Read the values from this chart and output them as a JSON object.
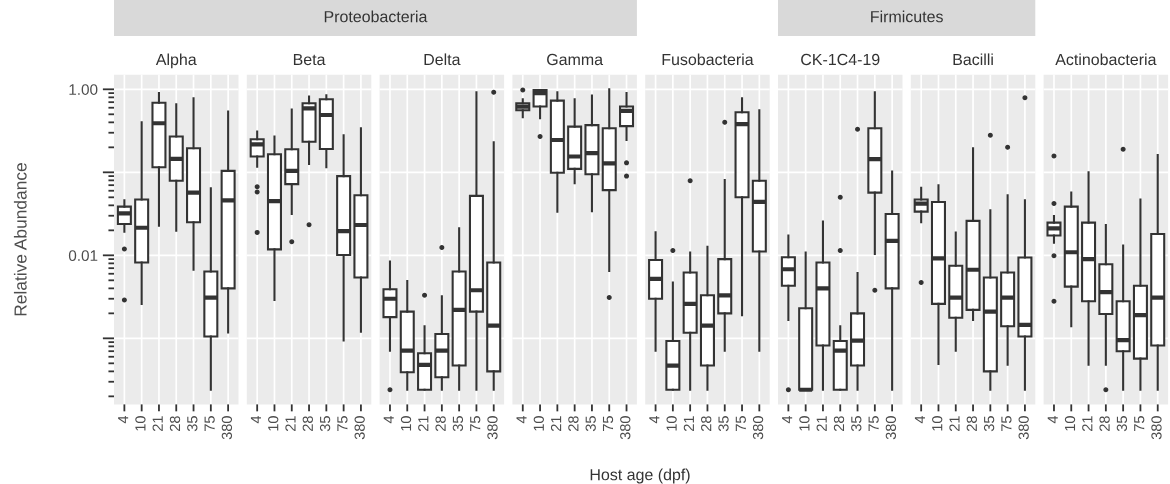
{
  "chart_data": [
    {
      "type": "box",
      "title": "Alpha",
      "ylabel": "Relative Abundance",
      "log": true,
      "grid": true,
      "ylim": [
        0.00016,
        1.5
      ],
      "yticks": [
        {
          "value": 1,
          "label": "1.00"
        },
        {
          "value": 0.1,
          "label": null
        },
        {
          "value": 0.01,
          "label": "0.01"
        },
        {
          "value": 0.001,
          "label": null
        }
      ],
      "categories": [
        "4",
        "10",
        "21",
        "28",
        "35",
        "75",
        "380"
      ],
      "boxes": [
        {
          "low": 0.0193,
          "q1": 0.0239,
          "median": 0.032,
          "q3": 0.0386,
          "high": 0.046,
          "outliers": [
            0.0119,
            0.0029
          ]
        },
        {
          "low": 0.0026,
          "q1": 0.0082,
          "median": 0.0215,
          "q3": 0.047,
          "high": 0.4
        },
        {
          "low": 0.0228,
          "q1": 0.115,
          "median": 0.39,
          "q3": 0.69,
          "high": 0.9
        },
        {
          "low": 0.0198,
          "q1": 0.079,
          "median": 0.145,
          "q3": 0.27,
          "high": 0.66
        },
        {
          "low": 0.0067,
          "q1": 0.025,
          "median": 0.057,
          "q3": 0.195,
          "high": 0.78
        },
        {
          "low": 0.00024,
          "q1": 0.00105,
          "median": 0.0031,
          "q3": 0.0064,
          "high": 0.064
        },
        {
          "low": 0.00118,
          "q1": 0.004,
          "median": 0.046,
          "q3": 0.104,
          "high": 0.54
        }
      ]
    },
    {
      "type": "box",
      "title": "Beta",
      "log": true,
      "grid": true,
      "tick_labels": "x",
      "ylim": [
        0.00016,
        1.5
      ],
      "yticks": [
        1,
        0.1,
        0.01,
        0.001
      ],
      "categories": [
        "4",
        "10",
        "21",
        "28",
        "35",
        "75",
        "380"
      ],
      "boxes": [
        {
          "low": 0.117,
          "q1": 0.155,
          "median": 0.217,
          "q3": 0.25,
          "high": 0.31,
          "outliers": [
            0.067,
            0.058,
            0.0189
          ]
        },
        {
          "low": 0.0029,
          "q1": 0.0118,
          "median": 0.045,
          "q3": 0.165,
          "high": 0.27
        },
        {
          "low": 0.0315,
          "q1": 0.072,
          "median": 0.104,
          "q3": 0.19,
          "high": 0.57,
          "outliers": [
            0.0146
          ]
        },
        {
          "low": 0.126,
          "q1": 0.234,
          "median": 0.59,
          "q3": 0.68,
          "high": 0.82,
          "outliers": [
            0.0234
          ]
        },
        {
          "low": 0.115,
          "q1": 0.191,
          "median": 0.49,
          "q3": 0.76,
          "high": 0.85
        },
        {
          "low": 0.00094,
          "q1": 0.0101,
          "median": 0.0196,
          "q3": 0.09,
          "high": 0.28
        },
        {
          "low": 0.0012,
          "q1": 0.0054,
          "median": 0.0232,
          "q3": 0.053,
          "high": 0.34
        }
      ]
    },
    {
      "type": "box",
      "title": "Delta",
      "subtitle": "Proteobacteria",
      "log": true,
      "grid": true,
      "tick_labels": "x",
      "ylim": [
        0.00016,
        1.5
      ],
      "yticks": [
        1,
        0.1,
        0.01,
        0.001
      ],
      "categories": [
        "4",
        "10",
        "21",
        "28",
        "35",
        "75",
        "380"
      ],
      "boxes": [
        {
          "low": 0.00071,
          "q1": 0.0018,
          "median": 0.003,
          "q3": 0.0039,
          "high": 0.0084,
          "outliers": [
            0.00024
          ]
        },
        {
          "low": 0.00024,
          "q1": 0.00039,
          "median": 0.00071,
          "q3": 0.0021,
          "high": 0.0049
        },
        {
          "low": 0.00024,
          "q1": 0.00024,
          "median": 0.00048,
          "q3": 0.00066,
          "high": 0.0014,
          "outliers": [
            0.0033
          ]
        },
        {
          "low": 0.00024,
          "q1": 0.00034,
          "median": 0.00071,
          "q3": 0.00113,
          "high": 0.0032,
          "outliers": [
            0.0124
          ]
        },
        {
          "low": 0.00024,
          "q1": 0.00047,
          "median": 0.0022,
          "q3": 0.0064,
          "high": 0.0211
        },
        {
          "low": 0.00024,
          "q1": 0.0021,
          "median": 0.0038,
          "q3": 0.052,
          "high": 0.92
        },
        {
          "low": 0.00024,
          "q1": 0.0004,
          "median": 0.00142,
          "q3": 0.0082,
          "high": 0.23,
          "outliers": [
            0.92
          ]
        }
      ]
    },
    {
      "type": "box",
      "title": "Gamma",
      "log": true,
      "grid": true,
      "tick_labels": "x",
      "ylim": [
        0.00016,
        1.5
      ],
      "yticks": [
        1,
        0.1,
        0.01,
        0.001
      ],
      "categories": [
        "4",
        "10",
        "21",
        "28",
        "35",
        "75",
        "380"
      ],
      "boxes": [
        {
          "low": 0.46,
          "q1": 0.56,
          "median": 0.62,
          "q3": 0.68,
          "high": 0.76,
          "outliers": [
            0.98
          ]
        },
        {
          "low": 0.45,
          "q1": 0.62,
          "median": 0.9,
          "q3": 0.98,
          "high": 0.98,
          "outliers": [
            0.27
          ]
        },
        {
          "low": 0.0336,
          "q1": 0.099,
          "median": 0.245,
          "q3": 0.73,
          "high": 0.92
        },
        {
          "low": 0.074,
          "q1": 0.11,
          "median": 0.155,
          "q3": 0.355,
          "high": 0.76
        },
        {
          "low": 0.034,
          "q1": 0.095,
          "median": 0.17,
          "q3": 0.37,
          "high": 0.84
        },
        {
          "low": 0.0065,
          "q1": 0.061,
          "median": 0.128,
          "q3": 0.34,
          "high": 1.0,
          "outliers": [
            0.0031
          ]
        },
        {
          "low": 0.245,
          "q1": 0.36,
          "median": 0.55,
          "q3": 0.62,
          "high": 0.9,
          "outliers": [
            0.13,
            0.09
          ]
        }
      ]
    },
    {
      "type": "box",
      "title": "Fusobacteria",
      "xlabel": "Host age (dpf)",
      "log": true,
      "grid": true,
      "tick_labels": "x",
      "ylim": [
        0.00016,
        1.5
      ],
      "yticks": [
        1,
        0.1,
        0.01,
        0.001
      ],
      "categories": [
        "4",
        "10",
        "21",
        "28",
        "35",
        "75",
        "380"
      ],
      "boxes": [
        {
          "low": 0.00071,
          "q1": 0.003,
          "median": 0.0052,
          "q3": 0.0088,
          "high": 0.0189
        },
        {
          "low": 0.00024,
          "q1": 0.00024,
          "median": 0.00047,
          "q3": 0.00093,
          "high": 0.0047,
          "outliers": [
            0.0114
          ]
        },
        {
          "low": 0.00024,
          "q1": 0.00117,
          "median": 0.0026,
          "q3": 0.0062,
          "high": 0.0108,
          "outliers": [
            0.079
          ]
        },
        {
          "low": 0.00024,
          "q1": 0.00047,
          "median": 0.00142,
          "q3": 0.0033,
          "high": 0.0127
        },
        {
          "low": 0.00071,
          "q1": 0.002,
          "median": 0.0033,
          "q3": 0.009,
          "high": 0.081,
          "outliers": [
            0.4
          ]
        },
        {
          "low": 0.0019,
          "q1": 0.05,
          "median": 0.38,
          "q3": 0.53,
          "high": 0.78
        },
        {
          "low": 0.00071,
          "q1": 0.0111,
          "median": 0.044,
          "q3": 0.079,
          "high": 0.56
        }
      ]
    },
    {
      "type": "box",
      "title": "CK-1C4-19",
      "subtitle": "Firmicutes",
      "log": true,
      "grid": true,
      "tick_labels": "x",
      "ylim": [
        0.00016,
        1.5
      ],
      "yticks": [
        1,
        0.1,
        0.01,
        0.001
      ],
      "categories": [
        "4",
        "10",
        "21",
        "28",
        "35",
        "75",
        "380"
      ],
      "boxes": [
        {
          "low": 0.00166,
          "q1": 0.0043,
          "median": 0.0068,
          "q3": 0.0095,
          "high": 0.0173,
          "outliers": [
            0.00024
          ]
        },
        {
          "low": 0.00024,
          "q1": 0.00024,
          "median": 0.00024,
          "q3": 0.0023,
          "high": 0.0108
        },
        {
          "low": 0.00024,
          "q1": 0.00082,
          "median": 0.004,
          "q3": 0.0082,
          "high": 0.0255
        },
        {
          "low": 0.00024,
          "q1": 0.00024,
          "median": 0.00071,
          "q3": 0.00093,
          "high": 0.0014,
          "outliers": [
            0.05,
            0.0114
          ]
        },
        {
          "low": 0.00024,
          "q1": 0.00047,
          "median": 0.00094,
          "q3": 0.002,
          "high": 0.0061,
          "outliers": [
            0.33
          ]
        },
        {
          "low": 0.0104,
          "q1": 0.057,
          "median": 0.144,
          "q3": 0.34,
          "high": 0.92,
          "outliers": [
            0.0038
          ]
        },
        {
          "low": 0.00024,
          "q1": 0.004,
          "median": 0.0149,
          "q3": 0.0315,
          "high": 0.102
        }
      ]
    },
    {
      "type": "box",
      "title": "Bacilli",
      "log": true,
      "grid": true,
      "tick_labels": "x",
      "ylim": [
        0.00016,
        1.5
      ],
      "yticks": [
        1,
        0.1,
        0.01,
        0.001
      ],
      "categories": [
        "4",
        "10",
        "21",
        "28",
        "35",
        "75",
        "380"
      ],
      "boxes": [
        {
          "low": 0.025,
          "q1": 0.0336,
          "median": 0.042,
          "q3": 0.047,
          "high": 0.065,
          "outliers": [
            0.0047
          ]
        },
        {
          "low": 0.00049,
          "q1": 0.0026,
          "median": 0.0092,
          "q3": 0.044,
          "high": 0.07
        },
        {
          "low": 0.00071,
          "q1": 0.00177,
          "median": 0.0031,
          "q3": 0.0075,
          "high": 0.0188
        },
        {
          "low": 0.00166,
          "q1": 0.0022,
          "median": 0.0067,
          "q3": 0.026,
          "high": 0.195
        },
        {
          "low": 0.00024,
          "q1": 0.0004,
          "median": 0.0021,
          "q3": 0.0054,
          "high": 0.035,
          "outliers": [
            0.28
          ]
        },
        {
          "low": 0.00048,
          "q1": 0.0014,
          "median": 0.0031,
          "q3": 0.0062,
          "high": 0.053,
          "outliers": [
            0.2
          ]
        },
        {
          "low": 0.00024,
          "q1": 0.00105,
          "median": 0.00145,
          "q3": 0.0094,
          "high": 0.046,
          "outliers": [
            0.79
          ]
        }
      ]
    },
    {
      "type": "box",
      "title": "Actinobacteria",
      "log": true,
      "grid": true,
      "tick_labels": "x",
      "ylim": [
        0.00016,
        1.5
      ],
      "yticks": [
        1,
        0.1,
        0.01,
        0.001
      ],
      "categories": [
        "4",
        "10",
        "21",
        "28",
        "35",
        "75",
        "380"
      ],
      "boxes": [
        {
          "low": 0.0142,
          "q1": 0.0173,
          "median": 0.0211,
          "q3": 0.0248,
          "high": 0.0298,
          "outliers": [
            0.157,
            0.042,
            0.0099,
            0.0028
          ]
        },
        {
          "low": 0.0014,
          "q1": 0.0042,
          "median": 0.0109,
          "q3": 0.0386,
          "high": 0.057
        },
        {
          "low": 0.00048,
          "q1": 0.0028,
          "median": 0.009,
          "q3": 0.0248,
          "high": 0.1
        },
        {
          "low": 0.00048,
          "q1": 0.00196,
          "median": 0.0036,
          "q3": 0.0078,
          "high": 0.0232,
          "outliers": [
            0.00024
          ]
        },
        {
          "low": 0.00024,
          "q1": 0.0007,
          "median": 0.00095,
          "q3": 0.0028,
          "high": 0.0131,
          "outliers": [
            0.19
          ]
        },
        {
          "low": 0.00024,
          "q1": 0.00057,
          "median": 0.0019,
          "q3": 0.0043,
          "high": 0.047
        },
        {
          "low": 0.00024,
          "q1": 0.00082,
          "median": 0.0031,
          "q3": 0.0181,
          "high": 0.162
        }
      ]
    }
  ]
}
